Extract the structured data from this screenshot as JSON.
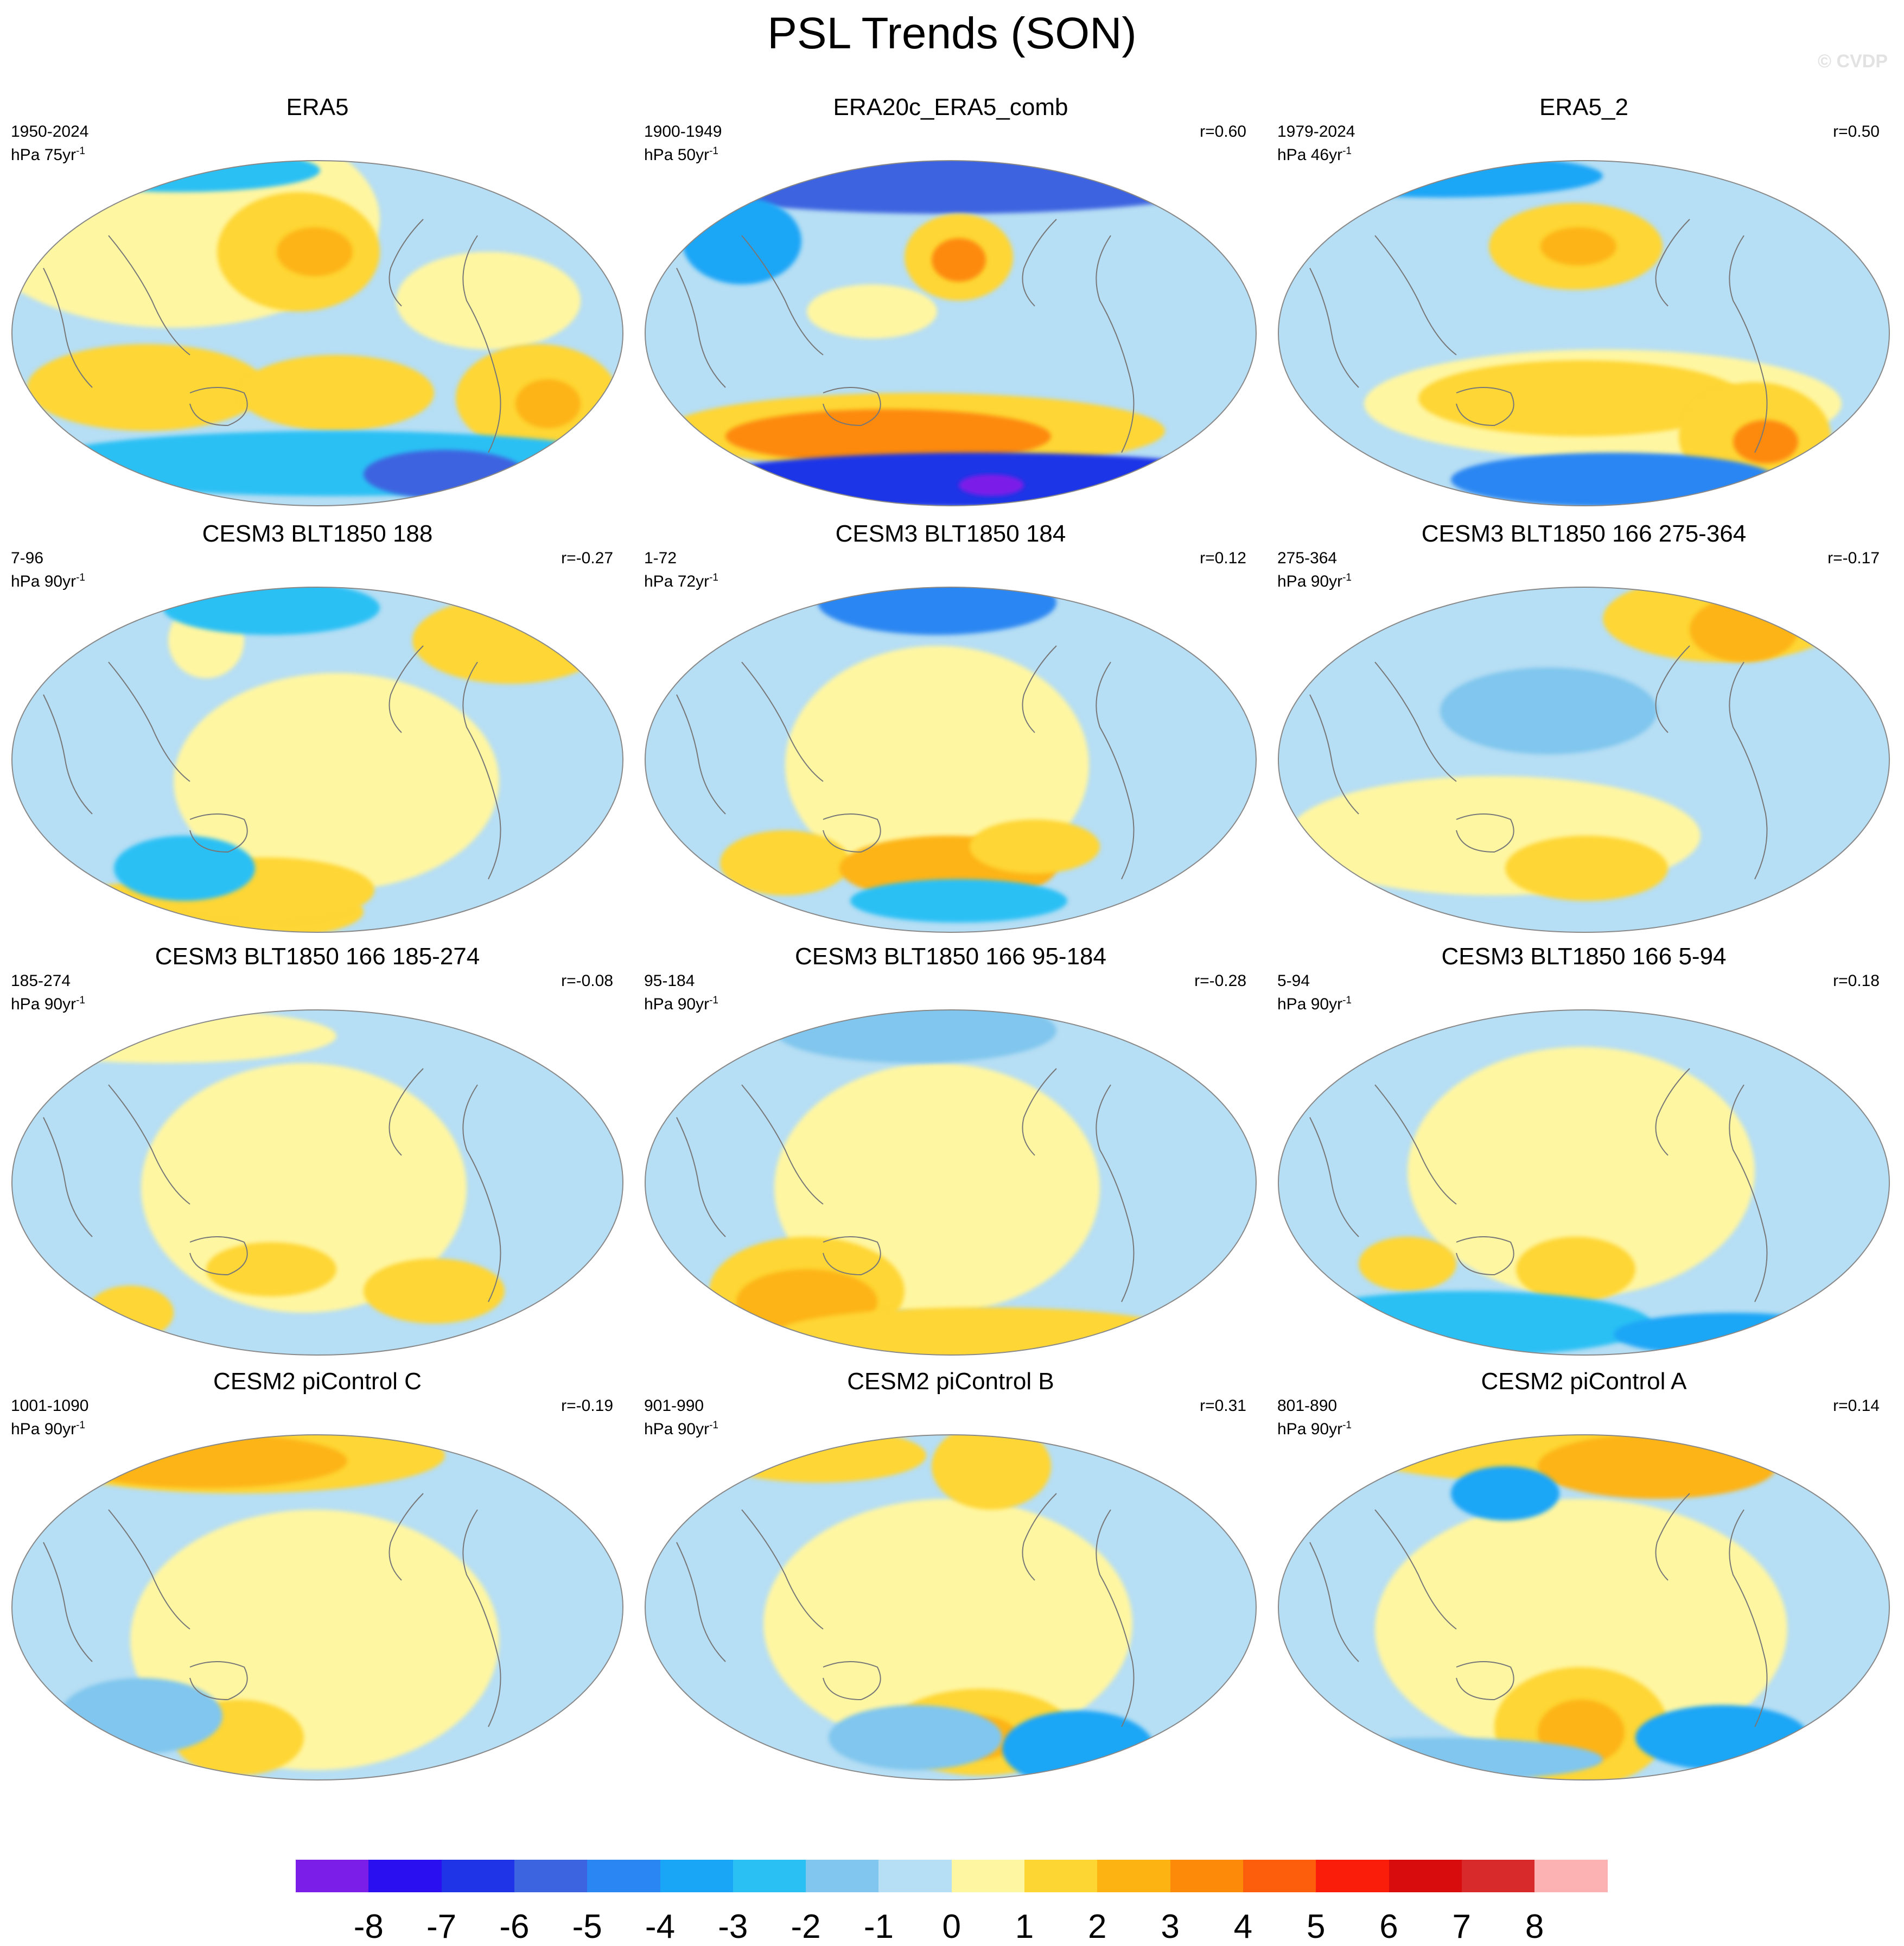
{
  "title": "PSL Trends (SON)",
  "watermark": "© CVDP",
  "panels": [
    {
      "title": "ERA5",
      "years": "1950-2024",
      "units": "hPa 75yr",
      "units_exp": "-1",
      "corr": ""
    },
    {
      "title": "ERA20c_ERA5_comb",
      "years": "1900-1949",
      "units": "hPa 50yr",
      "units_exp": "-1",
      "corr": "r=0.60"
    },
    {
      "title": "ERA5_2",
      "years": "1979-2024",
      "units": "hPa 46yr",
      "units_exp": "-1",
      "corr": "r=0.50"
    },
    {
      "title": "CESM3 BLT1850 188",
      "years": "7-96",
      "units": "hPa 90yr",
      "units_exp": "-1",
      "corr": "r=-0.27"
    },
    {
      "title": "CESM3 BLT1850 184",
      "years": "1-72",
      "units": "hPa 72yr",
      "units_exp": "-1",
      "corr": "r=0.12"
    },
    {
      "title": "CESM3 BLT1850 166 275-364",
      "years": "275-364",
      "units": "hPa 90yr",
      "units_exp": "-1",
      "corr": "r=-0.17"
    },
    {
      "title": "CESM3 BLT1850 166 185-274",
      "years": "185-274",
      "units": "hPa 90yr",
      "units_exp": "-1",
      "corr": "r=-0.08"
    },
    {
      "title": "CESM3 BLT1850 166 95-184",
      "years": "95-184",
      "units": "hPa 90yr",
      "units_exp": "-1",
      "corr": "r=-0.28"
    },
    {
      "title": "CESM3 BLT1850 166 5-94",
      "years": "5-94",
      "units": "hPa 90yr",
      "units_exp": "-1",
      "corr": "r=0.18"
    },
    {
      "title": "CESM2 piControl C",
      "years": "1001-1090",
      "units": "hPa 90yr",
      "units_exp": "-1",
      "corr": "r=-0.19"
    },
    {
      "title": "CESM2 piControl B",
      "years": "901-990",
      "units": "hPa 90yr",
      "units_exp": "-1",
      "corr": "r=0.31"
    },
    {
      "title": "CESM2 piControl A",
      "years": "801-890",
      "units": "hPa 90yr",
      "units_exp": "-1",
      "corr": "r=0.14"
    }
  ],
  "colorbar": {
    "colors": [
      "#7b1fe8",
      "#2a10f0",
      "#1e34e6",
      "#3c64e0",
      "#2a86f2",
      "#1aa6f6",
      "#2ac0f4",
      "#80c6ee",
      "#b6def4",
      "#fff6a2",
      "#fed634",
      "#fdb412",
      "#fd8a08",
      "#fc5e0c",
      "#fa1e0a",
      "#d80c0c",
      "#d82a2a",
      "#fcb2b2"
    ],
    "labels": [
      "-8",
      "-7",
      "-6",
      "-5",
      "-4",
      "-3",
      "-2",
      "-1",
      "0",
      "1",
      "2",
      "3",
      "4",
      "5",
      "6",
      "7",
      "8"
    ]
  }
}
